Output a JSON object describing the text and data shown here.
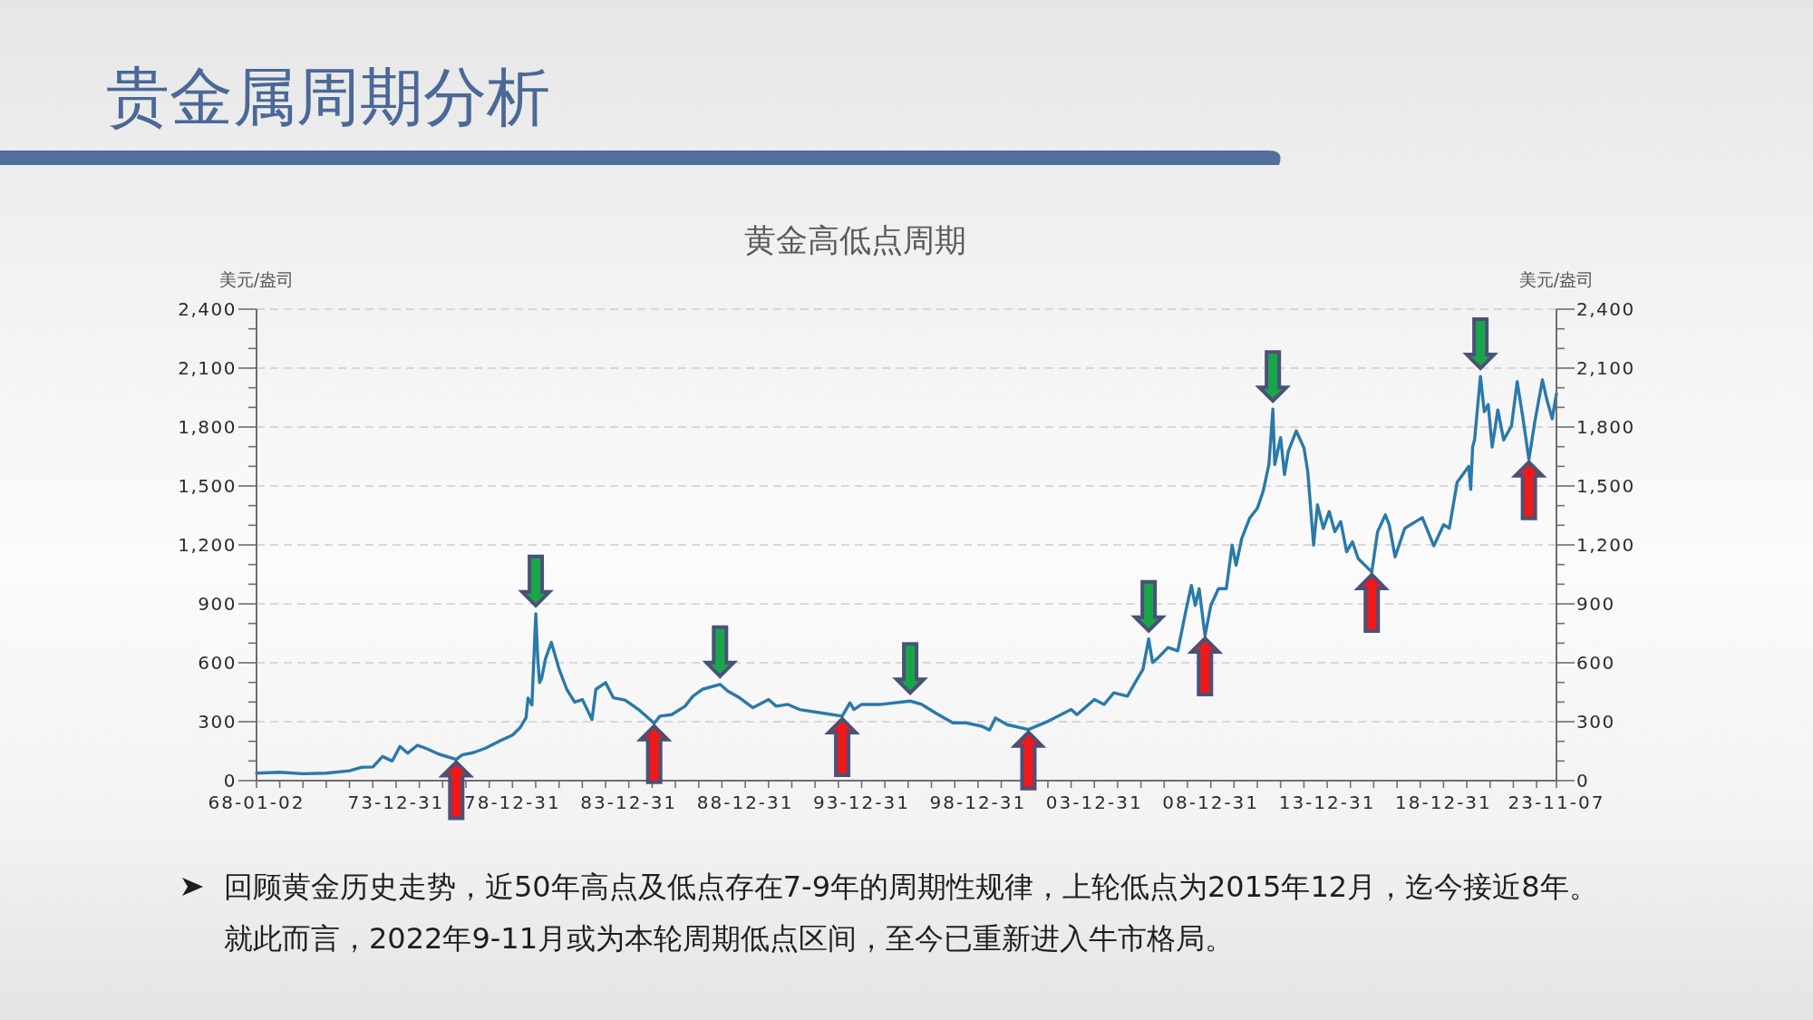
{
  "chart_data": {
    "type": "line",
    "title": "贵金属周期分析",
    "subtitle": "黄金高低点周期",
    "ylabel": "美元/盎司",
    "y2label": "美元/盎司",
    "x": [
      "1968-01-02",
      "1969-01",
      "1970-01",
      "1971-01",
      "1972-01",
      "1972-07",
      "1973-01",
      "1973-06",
      "1973-11",
      "1974-03",
      "1974-07",
      "1974-12",
      "1975-04",
      "1975-11",
      "1976-08",
      "1976-11",
      "1977-05",
      "1977-11",
      "1978-06",
      "1979-01",
      "1979-05",
      "1979-08",
      "1979-09",
      "1979-11",
      "1980-01",
      "1980-02",
      "1980-03",
      "1980-04",
      "1980-06",
      "1980-09",
      "1981-01",
      "1981-05",
      "1981-09",
      "1982-01",
      "1982-06",
      "1982-08",
      "1983-01",
      "1983-05",
      "1983-11",
      "1984-06",
      "1985-02",
      "1985-05",
      "1985-11",
      "1986-06",
      "1986-10",
      "1987-03",
      "1987-12",
      "1988-04",
      "1988-10",
      "1989-05",
      "1990-01",
      "1990-05",
      "1990-11",
      "1991-05",
      "1992-04",
      "1993-03",
      "1993-07",
      "1993-09",
      "1994-01",
      "1994-11",
      "1996-02",
      "1996-08",
      "1997-03",
      "1997-12",
      "1998-07",
      "1999-03",
      "1999-07",
      "1999-10",
      "2000-04",
      "2001-03",
      "2002-01",
      "2003-01",
      "2003-04",
      "2004-01",
      "2004-06",
      "2004-11",
      "2005-06",
      "2005-10",
      "2006-02",
      "2006-05",
      "2006-07",
      "2006-10",
      "2007-03",
      "2007-08",
      "2007-12",
      "2008-03",
      "2008-05",
      "2008-07",
      "2008-10",
      "2009-01",
      "2009-05",
      "2009-09",
      "2009-12",
      "2010-02",
      "2010-05",
      "2010-09",
      "2011-01",
      "2011-04",
      "2011-07",
      "2011-09",
      "2011-10",
      "2012-01",
      "2012-03",
      "2012-05",
      "2012-09",
      "2013-01",
      "2013-03",
      "2013-06",
      "2013-08",
      "2013-11",
      "2014-02",
      "2014-05",
      "2014-08",
      "2014-11",
      "2015-02",
      "2015-05",
      "2015-12",
      "2016-03",
      "2016-07",
      "2016-09",
      "2016-12",
      "2017-05",
      "2017-08",
      "2018-02",
      "2018-08",
      "2019-01",
      "2019-04",
      "2019-08",
      "2020-02",
      "2020-03",
      "2020-04",
      "2020-05",
      "2020-08",
      "2020-10",
      "2020-12",
      "2021-02",
      "2021-05",
      "2021-08",
      "2021-12",
      "2022-03",
      "2022-06",
      "2022-09",
      "2022-12",
      "2023-04",
      "2023-06",
      "2023-09",
      "2023-11-07"
    ],
    "series": [
      {
        "color": "#2a79a9",
        "values": [
          38,
          43,
          35,
          38,
          50,
          68,
          70,
          123,
          100,
          174,
          140,
          180,
          166,
          135,
          108,
          131,
          143,
          165,
          200,
          232,
          270,
          320,
          420,
          385,
          850,
          618,
          499,
          520,
          620,
          704,
          567,
          465,
          400,
          413,
          311,
          465,
          499,
          422,
          410,
          362,
          292,
          328,
          336,
          379,
          430,
          465,
          490,
          456,
          422,
          371,
          413,
          379,
          388,
          362,
          345,
          328,
          396,
          362,
          388,
          388,
          405,
          388,
          345,
          294,
          294,
          277,
          258,
          319,
          285,
          260,
          302,
          362,
          336,
          413,
          388,
          447,
          430,
          499,
          567,
          721,
          601,
          627,
          678,
          661,
          857,
          994,
          892,
          977,
          738,
          892,
          977,
          977,
          1199,
          1097,
          1233,
          1336,
          1387,
          1472,
          1609,
          1891,
          1609,
          1746,
          1558,
          1677,
          1780,
          1694,
          1575,
          1199,
          1404,
          1284,
          1370,
          1267,
          1319,
          1165,
          1216,
          1131,
          1062,
          1267,
          1353,
          1301,
          1139,
          1284,
          1303,
          1339,
          1195,
          1303,
          1285,
          1518,
          1600,
          1483,
          1700,
          1734,
          2058,
          1878,
          1914,
          1698,
          1887,
          1734,
          1806,
          2031,
          1842,
          1635,
          1824,
          2040,
          1950,
          1842,
          1970
        ]
      }
    ],
    "xlim": [
      "1968-01-02",
      "2023-11-07"
    ],
    "xticks": [
      {
        "value": "1968-01-02",
        "label": "68-01-02"
      },
      {
        "value": "1968-12-31",
        "label": null
      },
      {
        "value": "1969-12-31",
        "label": null
      },
      {
        "value": "1970-12-31",
        "label": null
      },
      {
        "value": "1971-12-31",
        "label": null
      },
      {
        "value": "1972-12-31",
        "label": null
      },
      {
        "value": "1973-12-31",
        "label": "73-12-31"
      },
      {
        "value": "1974-12-31",
        "label": null
      },
      {
        "value": "1975-12-31",
        "label": null
      },
      {
        "value": "1976-12-31",
        "label": null
      },
      {
        "value": "1977-12-31",
        "label": null
      },
      {
        "value": "1978-12-31",
        "label": "78-12-31"
      },
      {
        "value": "1979-12-31",
        "label": null
      },
      {
        "value": "1980-12-31",
        "label": null
      },
      {
        "value": "1981-12-31",
        "label": null
      },
      {
        "value": "1982-12-31",
        "label": null
      },
      {
        "value": "1983-12-31",
        "label": "83-12-31"
      },
      {
        "value": "1984-12-31",
        "label": null
      },
      {
        "value": "1985-12-31",
        "label": null
      },
      {
        "value": "1986-12-31",
        "label": null
      },
      {
        "value": "1987-12-31",
        "label": null
      },
      {
        "value": "1988-12-31",
        "label": "88-12-31"
      },
      {
        "value": "1989-12-31",
        "label": null
      },
      {
        "value": "1990-12-31",
        "label": null
      },
      {
        "value": "1991-12-31",
        "label": null
      },
      {
        "value": "1992-12-31",
        "label": null
      },
      {
        "value": "1993-12-31",
        "label": "93-12-31"
      },
      {
        "value": "1994-12-31",
        "label": null
      },
      {
        "value": "1995-12-31",
        "label": null
      },
      {
        "value": "1996-12-31",
        "label": null
      },
      {
        "value": "1997-12-31",
        "label": null
      },
      {
        "value": "1998-12-31",
        "label": "98-12-31"
      },
      {
        "value": "1999-12-31",
        "label": null
      },
      {
        "value": "2000-12-31",
        "label": null
      },
      {
        "value": "2001-12-31",
        "label": null
      },
      {
        "value": "2002-12-31",
        "label": null
      },
      {
        "value": "2003-12-31",
        "label": "03-12-31"
      },
      {
        "value": "2004-12-31",
        "label": null
      },
      {
        "value": "2005-12-31",
        "label": null
      },
      {
        "value": "2006-12-31",
        "label": null
      },
      {
        "value": "2007-12-31",
        "label": null
      },
      {
        "value": "2008-12-31",
        "label": "08-12-31"
      },
      {
        "value": "2009-12-31",
        "label": null
      },
      {
        "value": "2010-12-31",
        "label": null
      },
      {
        "value": "2011-12-31",
        "label": null
      },
      {
        "value": "2012-12-31",
        "label": null
      },
      {
        "value": "2013-12-31",
        "label": "13-12-31"
      },
      {
        "value": "2014-12-31",
        "label": null
      },
      {
        "value": "2015-12-31",
        "label": null
      },
      {
        "value": "2016-12-31",
        "label": null
      },
      {
        "value": "2017-12-31",
        "label": null
      },
      {
        "value": "2018-12-31",
        "label": "18-12-31"
      },
      {
        "value": "2019-12-31",
        "label": null
      },
      {
        "value": "2020-12-31",
        "label": null
      },
      {
        "value": "2021-12-31",
        "label": null
      },
      {
        "value": "2022-12-31",
        "label": null
      },
      {
        "value": "2023-11-07",
        "label": "23-11-07"
      }
    ],
    "ylim": [
      0,
      2400
    ],
    "yticks": [
      0,
      {
        "value": 100,
        "label": null
      },
      {
        "value": 200,
        "label": null
      },
      300,
      {
        "value": 400,
        "label": null
      },
      {
        "value": 500,
        "label": null
      },
      600,
      {
        "value": 700,
        "label": null
      },
      {
        "value": 800,
        "label": null
      },
      900,
      {
        "value": 1000,
        "label": null
      },
      {
        "value": 1100,
        "label": null
      },
      {
        "value": 1200,
        "label": "1,200"
      },
      {
        "value": 1300,
        "label": null
      },
      {
        "value": 1400,
        "label": null
      },
      {
        "value": 1500,
        "label": "1,500"
      },
      {
        "value": 1600,
        "label": null
      },
      {
        "value": 1700,
        "label": null
      },
      {
        "value": 1800,
        "label": "1,800"
      },
      {
        "value": 1900,
        "label": null
      },
      {
        "value": 2000,
        "label": null
      },
      {
        "value": 2100,
        "label": "2,100"
      },
      {
        "value": 2200,
        "label": null
      },
      {
        "value": 2300,
        "label": null
      },
      {
        "value": 2400,
        "label": "2,400"
      }
    ],
    "y2lim": [
      0,
      2400
    ],
    "y2ticks": [
      0,
      {
        "value": 100,
        "label": null
      },
      {
        "value": 200,
        "label": null
      },
      300,
      {
        "value": 400,
        "label": null
      },
      {
        "value": 500,
        "label": null
      },
      600,
      {
        "value": 700,
        "label": null
      },
      {
        "value": 800,
        "label": null
      },
      900,
      {
        "value": 1000,
        "label": null
      },
      {
        "value": 1100,
        "label": null
      },
      {
        "value": 1200,
        "label": "1,200"
      },
      {
        "value": 1300,
        "label": null
      },
      {
        "value": 1400,
        "label": null
      },
      {
        "value": 1500,
        "label": "1,500"
      },
      {
        "value": 1600,
        "label": null
      },
      {
        "value": 1700,
        "label": null
      },
      {
        "value": 1800,
        "label": "1,800"
      },
      {
        "value": 1900,
        "label": null
      },
      {
        "value": 2000,
        "label": null
      },
      {
        "value": 2100,
        "label": "2,100"
      },
      {
        "value": 2200,
        "label": null
      },
      {
        "value": 2300,
        "label": null
      },
      {
        "value": 2400,
        "label": "2,400"
      }
    ],
    "grid": "y",
    "annotations": [
      "回顾黄金历史走势，近50年高点及低点存在7-9年的周期性规律，上轮低点为2015年12月，迄今接近8年。就此而言，2022年9-11月或为本轮周期低点区间，至今已重新进入牛市格局。"
    ]
  }
}
